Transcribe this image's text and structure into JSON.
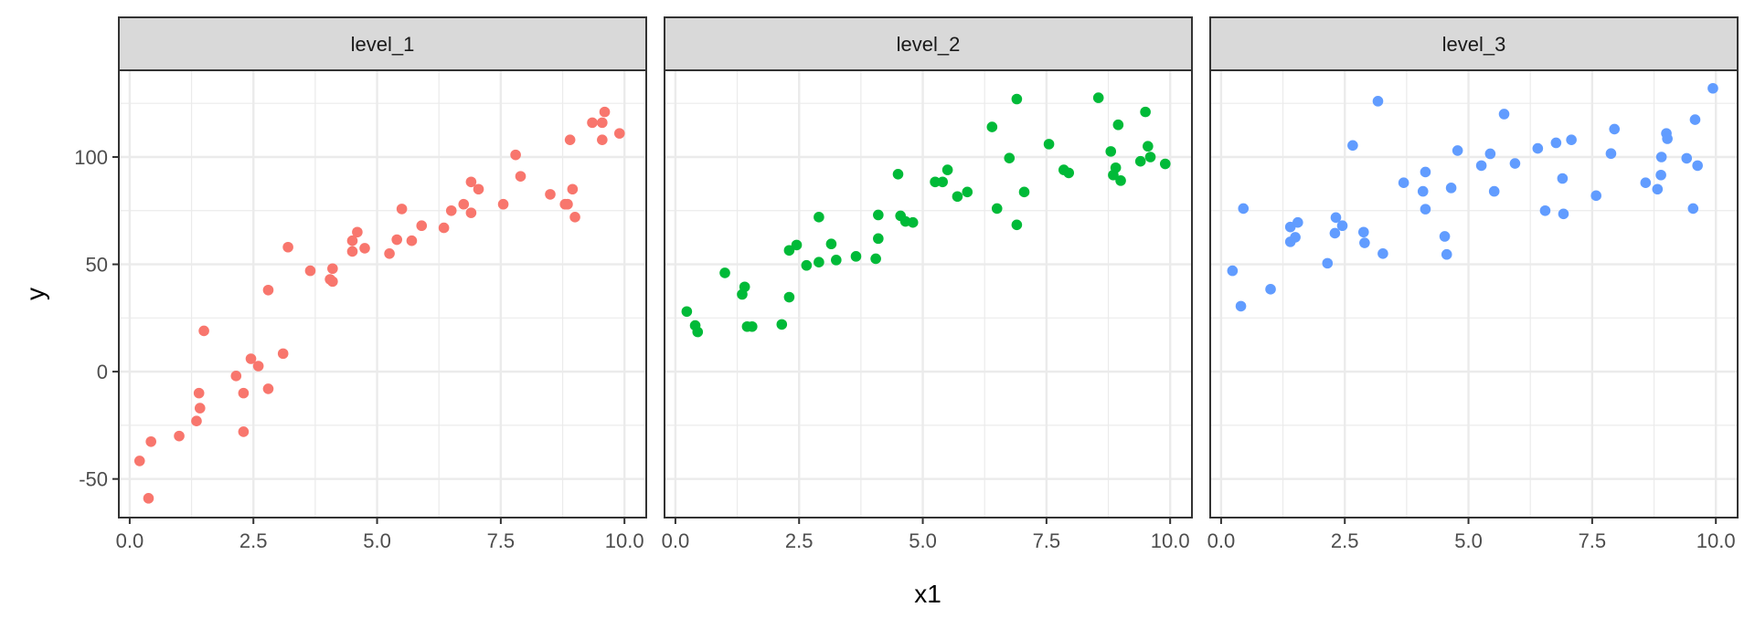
{
  "chart_data": {
    "type": "scatter",
    "xlabel": "x1",
    "ylabel": "y",
    "xlim": [
      -0.22,
      10.44
    ],
    "ylim": [
      -68,
      140.4
    ],
    "x_ticks": [
      "0.0",
      "2.5",
      "5.0",
      "7.5",
      "10.0"
    ],
    "x_tick_values": [
      0,
      2.5,
      5,
      7.5,
      10
    ],
    "y_ticks": [
      "-50",
      "0",
      "50",
      "100"
    ],
    "y_tick_values": [
      -50,
      0,
      50,
      100
    ],
    "grid": true,
    "legend": "none",
    "facets": [
      {
        "label": "level_1",
        "color": "#F8766D",
        "points": [
          [
            0.2,
            -41.6
          ],
          [
            0.43,
            -32.6
          ],
          [
            0.38,
            -59
          ],
          [
            1.0,
            -30
          ],
          [
            1.4,
            -10
          ],
          [
            1.42,
            -17
          ],
          [
            1.35,
            -23
          ],
          [
            1.5,
            19
          ],
          [
            2.15,
            -2
          ],
          [
            2.3,
            -10
          ],
          [
            2.3,
            -28
          ],
          [
            2.45,
            6
          ],
          [
            2.6,
            2.6
          ],
          [
            2.8,
            38
          ],
          [
            2.8,
            -8
          ],
          [
            3.1,
            8.4
          ],
          [
            3.2,
            58
          ],
          [
            3.65,
            47
          ],
          [
            4.05,
            43
          ],
          [
            4.1,
            48
          ],
          [
            4.1,
            42
          ],
          [
            4.5,
            56
          ],
          [
            4.5,
            61
          ],
          [
            4.6,
            65
          ],
          [
            4.75,
            57.5
          ],
          [
            5.25,
            55
          ],
          [
            5.4,
            61.5
          ],
          [
            5.5,
            75.8
          ],
          [
            5.7,
            61
          ],
          [
            5.9,
            68
          ],
          [
            6.35,
            67
          ],
          [
            6.5,
            75
          ],
          [
            6.75,
            78
          ],
          [
            6.9,
            88.4
          ],
          [
            6.9,
            74
          ],
          [
            7.05,
            85
          ],
          [
            7.55,
            78
          ],
          [
            7.8,
            101
          ],
          [
            7.9,
            91
          ],
          [
            8.5,
            82.6
          ],
          [
            8.8,
            78
          ],
          [
            8.85,
            78
          ],
          [
            8.9,
            108
          ],
          [
            8.95,
            85
          ],
          [
            9.0,
            72
          ],
          [
            9.35,
            116
          ],
          [
            9.55,
            116
          ],
          [
            9.6,
            121
          ],
          [
            9.55,
            108
          ],
          [
            9.9,
            111
          ]
        ]
      },
      {
        "label": "level_2",
        "color": "#00BA38",
        "points": [
          [
            0.23,
            28
          ],
          [
            0.4,
            21.5
          ],
          [
            0.45,
            18.5
          ],
          [
            1.0,
            46
          ],
          [
            1.4,
            39.5
          ],
          [
            1.35,
            36
          ],
          [
            1.45,
            21
          ],
          [
            1.55,
            21
          ],
          [
            2.15,
            22
          ],
          [
            2.3,
            34.7
          ],
          [
            2.3,
            56.5
          ],
          [
            2.45,
            59
          ],
          [
            2.65,
            49.5
          ],
          [
            2.9,
            72
          ],
          [
            2.9,
            51
          ],
          [
            3.15,
            59.5
          ],
          [
            3.25,
            52
          ],
          [
            3.65,
            53.7
          ],
          [
            4.05,
            52.6
          ],
          [
            4.1,
            62
          ],
          [
            4.1,
            73
          ],
          [
            4.5,
            92
          ],
          [
            4.55,
            72.6
          ],
          [
            4.65,
            70
          ],
          [
            4.8,
            69.5
          ],
          [
            5.25,
            88.4
          ],
          [
            5.4,
            88.4
          ],
          [
            5.5,
            94
          ],
          [
            5.7,
            81.6
          ],
          [
            5.9,
            83.7
          ],
          [
            6.4,
            114
          ],
          [
            6.5,
            76
          ],
          [
            6.75,
            99.5
          ],
          [
            6.9,
            68.4
          ],
          [
            6.9,
            127
          ],
          [
            7.05,
            83.7
          ],
          [
            7.55,
            106
          ],
          [
            7.85,
            94
          ],
          [
            7.95,
            92.6
          ],
          [
            8.55,
            127.6
          ],
          [
            8.8,
            102.6
          ],
          [
            8.9,
            95
          ],
          [
            8.85,
            91.6
          ],
          [
            9.0,
            89
          ],
          [
            8.95,
            115
          ],
          [
            9.4,
            98
          ],
          [
            9.5,
            121
          ],
          [
            9.55,
            105
          ],
          [
            9.6,
            100
          ],
          [
            9.9,
            96.8
          ]
        ]
      },
      {
        "label": "level_3",
        "color": "#619CFF",
        "points": [
          [
            0.23,
            47
          ],
          [
            0.4,
            30.5
          ],
          [
            0.45,
            76
          ],
          [
            1.0,
            38.4
          ],
          [
            1.4,
            60.5
          ],
          [
            1.4,
            67.4
          ],
          [
            1.5,
            62.6
          ],
          [
            1.55,
            69.5
          ],
          [
            2.15,
            50.5
          ],
          [
            2.32,
            71.8
          ],
          [
            2.3,
            64.5
          ],
          [
            2.45,
            68
          ],
          [
            2.66,
            105.4
          ],
          [
            2.88,
            65
          ],
          [
            2.9,
            60
          ],
          [
            3.27,
            55
          ],
          [
            3.17,
            126
          ],
          [
            3.69,
            88
          ],
          [
            4.08,
            84
          ],
          [
            4.13,
            93
          ],
          [
            4.13,
            75.7
          ],
          [
            4.52,
            63
          ],
          [
            4.56,
            54.6
          ],
          [
            4.65,
            85.6
          ],
          [
            4.78,
            103
          ],
          [
            5.26,
            96
          ],
          [
            5.72,
            120
          ],
          [
            5.44,
            101.5
          ],
          [
            5.94,
            97
          ],
          [
            5.52,
            84
          ],
          [
            6.4,
            104
          ],
          [
            6.77,
            106.6
          ],
          [
            7.08,
            108
          ],
          [
            6.9,
            90
          ],
          [
            6.55,
            75
          ],
          [
            6.92,
            73.5
          ],
          [
            7.58,
            82
          ],
          [
            7.95,
            113
          ],
          [
            7.88,
            101.6
          ],
          [
            8.58,
            88
          ],
          [
            8.82,
            85
          ],
          [
            8.89,
            91.6
          ],
          [
            8.9,
            100
          ],
          [
            9.0,
            111
          ],
          [
            9.02,
            108.5
          ],
          [
            9.41,
            99.4
          ],
          [
            9.63,
            96
          ],
          [
            9.58,
            117.4
          ],
          [
            9.54,
            76
          ],
          [
            9.94,
            132
          ]
        ]
      }
    ]
  }
}
